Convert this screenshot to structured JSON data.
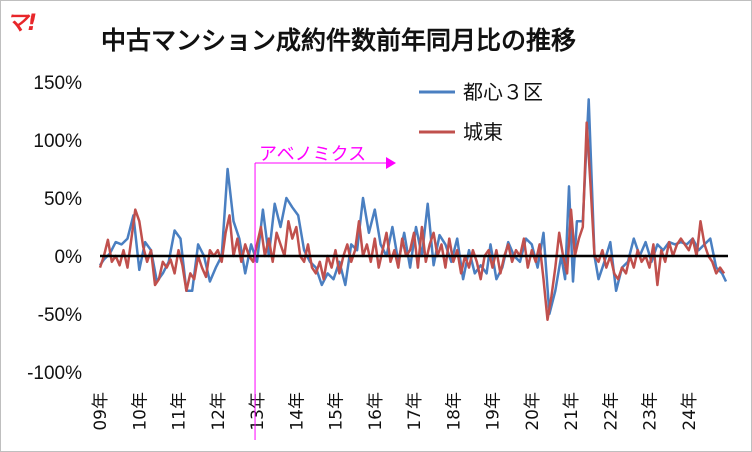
{
  "logo": "マ!",
  "chart_data": {
    "type": "line",
    "title": "中古マンション成約件数前年同月比の推移",
    "xlabel": "",
    "ylabel": "",
    "ylim": [
      -100,
      150
    ],
    "yticks": [
      "150%",
      "100%",
      "50%",
      "0%",
      "-50%",
      "-100%"
    ],
    "ytick_values": [
      150,
      100,
      50,
      0,
      -50,
      -100
    ],
    "x_tick_labels": [
      "09年",
      "10年",
      "11年",
      "12年",
      "13年",
      "14年",
      "15年",
      "16年",
      "17年",
      "18年",
      "19年",
      "20年",
      "21年",
      "22年",
      "23年",
      "24年"
    ],
    "x_start_year": 2009,
    "x_end_year": 2025,
    "legend_position": "top-right",
    "annotation": {
      "label": "アベノミクス",
      "x": 2012.95,
      "color": "#ff00ff"
    },
    "series": [
      {
        "name": "都心３区",
        "color": "#4a7fc1",
        "points": [
          [
            2009.0,
            -8
          ],
          [
            2009.1,
            -3
          ],
          [
            2009.25,
            2
          ],
          [
            2009.4,
            12
          ],
          [
            2009.55,
            10
          ],
          [
            2009.7,
            15
          ],
          [
            2009.85,
            35
          ],
          [
            2010.0,
            -12
          ],
          [
            2010.15,
            12
          ],
          [
            2010.3,
            5
          ],
          [
            2010.45,
            -22
          ],
          [
            2010.6,
            -15
          ],
          [
            2010.75,
            -5
          ],
          [
            2010.9,
            22
          ],
          [
            2011.05,
            15
          ],
          [
            2011.2,
            -30
          ],
          [
            2011.35,
            -30
          ],
          [
            2011.5,
            10
          ],
          [
            2011.65,
            0
          ],
          [
            2011.8,
            -22
          ],
          [
            2011.95,
            -10
          ],
          [
            2012.1,
            0
          ],
          [
            2012.25,
            75
          ],
          [
            2012.4,
            30
          ],
          [
            2012.55,
            15
          ],
          [
            2012.7,
            -15
          ],
          [
            2012.85,
            10
          ],
          [
            2013.0,
            -5
          ],
          [
            2013.15,
            40
          ],
          [
            2013.3,
            0
          ],
          [
            2013.45,
            45
          ],
          [
            2013.6,
            25
          ],
          [
            2013.75,
            50
          ],
          [
            2013.9,
            42
          ],
          [
            2014.05,
            35
          ],
          [
            2014.2,
            5
          ],
          [
            2014.35,
            -5
          ],
          [
            2014.5,
            -10
          ],
          [
            2014.65,
            -25
          ],
          [
            2014.8,
            -15
          ],
          [
            2014.95,
            -20
          ],
          [
            2015.1,
            -5
          ],
          [
            2015.25,
            -25
          ],
          [
            2015.4,
            10
          ],
          [
            2015.55,
            5
          ],
          [
            2015.7,
            50
          ],
          [
            2015.85,
            20
          ],
          [
            2016.0,
            40
          ],
          [
            2016.15,
            10
          ],
          [
            2016.3,
            0
          ],
          [
            2016.45,
            25
          ],
          [
            2016.6,
            -5
          ],
          [
            2016.75,
            20
          ],
          [
            2016.9,
            -10
          ],
          [
            2017.05,
            25
          ],
          [
            2017.2,
            0
          ],
          [
            2017.35,
            45
          ],
          [
            2017.5,
            -8
          ],
          [
            2017.65,
            18
          ],
          [
            2017.8,
            10
          ],
          [
            2017.95,
            -5
          ],
          [
            2018.1,
            15
          ],
          [
            2018.25,
            -20
          ],
          [
            2018.4,
            5
          ],
          [
            2018.55,
            -15
          ],
          [
            2018.7,
            -8
          ],
          [
            2018.85,
            -15
          ],
          [
            2018.95,
            10
          ],
          [
            2019.1,
            -20
          ],
          [
            2019.25,
            -10
          ],
          [
            2019.4,
            12
          ],
          [
            2019.55,
            0
          ],
          [
            2019.7,
            -5
          ],
          [
            2019.85,
            15
          ],
          [
            2020.0,
            10
          ],
          [
            2020.15,
            -10
          ],
          [
            2020.3,
            20
          ],
          [
            2020.45,
            -50
          ],
          [
            2020.6,
            -30
          ],
          [
            2020.75,
            0
          ],
          [
            2020.85,
            -20
          ],
          [
            2020.95,
            60
          ],
          [
            2021.05,
            -22
          ],
          [
            2021.15,
            30
          ],
          [
            2021.3,
            30
          ],
          [
            2021.45,
            135
          ],
          [
            2021.6,
            0
          ],
          [
            2021.7,
            -20
          ],
          [
            2021.85,
            -5
          ],
          [
            2022.0,
            12
          ],
          [
            2022.15,
            -30
          ],
          [
            2022.3,
            -10
          ],
          [
            2022.45,
            -5
          ],
          [
            2022.6,
            15
          ],
          [
            2022.75,
            0
          ],
          [
            2022.9,
            12
          ],
          [
            2023.05,
            -5
          ],
          [
            2023.2,
            10
          ],
          [
            2023.35,
            5
          ],
          [
            2023.5,
            12
          ],
          [
            2023.65,
            10
          ],
          [
            2023.8,
            12
          ],
          [
            2023.95,
            10
          ],
          [
            2024.1,
            15
          ],
          [
            2024.25,
            5
          ],
          [
            2024.4,
            10
          ],
          [
            2024.55,
            15
          ],
          [
            2024.7,
            -10
          ],
          [
            2024.85,
            -15
          ],
          [
            2024.95,
            -22
          ]
        ]
      },
      {
        "name": "城東",
        "color": "#c0504d",
        "points": [
          [
            2009.0,
            -10
          ],
          [
            2009.1,
            0
          ],
          [
            2009.2,
            14
          ],
          [
            2009.3,
            -5
          ],
          [
            2009.4,
            0
          ],
          [
            2009.5,
            -8
          ],
          [
            2009.6,
            5
          ],
          [
            2009.7,
            -10
          ],
          [
            2009.8,
            15
          ],
          [
            2009.9,
            40
          ],
          [
            2010.0,
            30
          ],
          [
            2010.1,
            8
          ],
          [
            2010.2,
            -5
          ],
          [
            2010.3,
            5
          ],
          [
            2010.4,
            -25
          ],
          [
            2010.5,
            -20
          ],
          [
            2010.6,
            -5
          ],
          [
            2010.7,
            -10
          ],
          [
            2010.8,
            -3
          ],
          [
            2010.9,
            -15
          ],
          [
            2011.0,
            5
          ],
          [
            2011.1,
            -8
          ],
          [
            2011.2,
            -30
          ],
          [
            2011.3,
            -15
          ],
          [
            2011.4,
            -20
          ],
          [
            2011.5,
            0
          ],
          [
            2011.6,
            -10
          ],
          [
            2011.7,
            -18
          ],
          [
            2011.8,
            5
          ],
          [
            2011.9,
            0
          ],
          [
            2012.0,
            5
          ],
          [
            2012.1,
            -5
          ],
          [
            2012.2,
            20
          ],
          [
            2012.3,
            35
          ],
          [
            2012.4,
            0
          ],
          [
            2012.5,
            15
          ],
          [
            2012.6,
            -5
          ],
          [
            2012.7,
            10
          ],
          [
            2012.8,
            0
          ],
          [
            2012.9,
            -5
          ],
          [
            2013.0,
            10
          ],
          [
            2013.1,
            25
          ],
          [
            2013.2,
            0
          ],
          [
            2013.3,
            15
          ],
          [
            2013.4,
            -5
          ],
          [
            2013.5,
            20
          ],
          [
            2013.6,
            10
          ],
          [
            2013.7,
            0
          ],
          [
            2013.8,
            30
          ],
          [
            2013.9,
            15
          ],
          [
            2014.0,
            25
          ],
          [
            2014.1,
            0
          ],
          [
            2014.2,
            -5
          ],
          [
            2014.3,
            10
          ],
          [
            2014.4,
            -10
          ],
          [
            2014.5,
            -15
          ],
          [
            2014.6,
            -5
          ],
          [
            2014.7,
            -20
          ],
          [
            2014.8,
            0
          ],
          [
            2014.9,
            -10
          ],
          [
            2015.0,
            5
          ],
          [
            2015.1,
            -15
          ],
          [
            2015.2,
            0
          ],
          [
            2015.3,
            10
          ],
          [
            2015.4,
            -5
          ],
          [
            2015.5,
            5
          ],
          [
            2015.6,
            30
          ],
          [
            2015.7,
            0
          ],
          [
            2015.8,
            10
          ],
          [
            2015.9,
            -5
          ],
          [
            2016.0,
            15
          ],
          [
            2016.1,
            -10
          ],
          [
            2016.2,
            5
          ],
          [
            2016.3,
            20
          ],
          [
            2016.4,
            -5
          ],
          [
            2016.5,
            5
          ],
          [
            2016.6,
            -10
          ],
          [
            2016.7,
            15
          ],
          [
            2016.8,
            0
          ],
          [
            2016.9,
            5
          ],
          [
            2017.0,
            20
          ],
          [
            2017.1,
            -10
          ],
          [
            2017.2,
            25
          ],
          [
            2017.3,
            -5
          ],
          [
            2017.4,
            10
          ],
          [
            2017.5,
            20
          ],
          [
            2017.6,
            0
          ],
          [
            2017.7,
            10
          ],
          [
            2017.8,
            -10
          ],
          [
            2017.9,
            15
          ],
          [
            2018.0,
            -5
          ],
          [
            2018.1,
            5
          ],
          [
            2018.2,
            -15
          ],
          [
            2018.3,
            0
          ],
          [
            2018.4,
            -10
          ],
          [
            2018.5,
            5
          ],
          [
            2018.6,
            -5
          ],
          [
            2018.7,
            -20
          ],
          [
            2018.8,
            0
          ],
          [
            2018.9,
            5
          ],
          [
            2019.0,
            -10
          ],
          [
            2019.1,
            5
          ],
          [
            2019.2,
            -15
          ],
          [
            2019.3,
            0
          ],
          [
            2019.4,
            10
          ],
          [
            2019.5,
            -5
          ],
          [
            2019.6,
            5
          ],
          [
            2019.7,
            0
          ],
          [
            2019.8,
            15
          ],
          [
            2019.9,
            -10
          ],
          [
            2020.0,
            5
          ],
          [
            2020.1,
            -5
          ],
          [
            2020.2,
            10
          ],
          [
            2020.3,
            -20
          ],
          [
            2020.4,
            -55
          ],
          [
            2020.5,
            -35
          ],
          [
            2020.6,
            -10
          ],
          [
            2020.7,
            20
          ],
          [
            2020.8,
            0
          ],
          [
            2020.9,
            -15
          ],
          [
            2021.0,
            40
          ],
          [
            2021.1,
            0
          ],
          [
            2021.2,
            15
          ],
          [
            2021.3,
            25
          ],
          [
            2021.4,
            115
          ],
          [
            2021.5,
            60
          ],
          [
            2021.6,
            0
          ],
          [
            2021.7,
            -5
          ],
          [
            2021.8,
            5
          ],
          [
            2021.9,
            -10
          ],
          [
            2022.0,
            0
          ],
          [
            2022.1,
            -15
          ],
          [
            2022.2,
            -20
          ],
          [
            2022.3,
            -10
          ],
          [
            2022.4,
            -15
          ],
          [
            2022.5,
            0
          ],
          [
            2022.6,
            -10
          ],
          [
            2022.7,
            5
          ],
          [
            2022.8,
            -5
          ],
          [
            2022.9,
            0
          ],
          [
            2023.0,
            -10
          ],
          [
            2023.1,
            10
          ],
          [
            2023.2,
            -25
          ],
          [
            2023.3,
            5
          ],
          [
            2023.4,
            -5
          ],
          [
            2023.5,
            12
          ],
          [
            2023.6,
            0
          ],
          [
            2023.7,
            10
          ],
          [
            2023.8,
            15
          ],
          [
            2023.9,
            10
          ],
          [
            2024.0,
            5
          ],
          [
            2024.1,
            15
          ],
          [
            2024.2,
            0
          ],
          [
            2024.3,
            30
          ],
          [
            2024.4,
            10
          ],
          [
            2024.5,
            0
          ],
          [
            2024.6,
            -5
          ],
          [
            2024.7,
            -15
          ],
          [
            2024.8,
            -10
          ],
          [
            2024.9,
            -15
          ]
        ]
      }
    ]
  }
}
